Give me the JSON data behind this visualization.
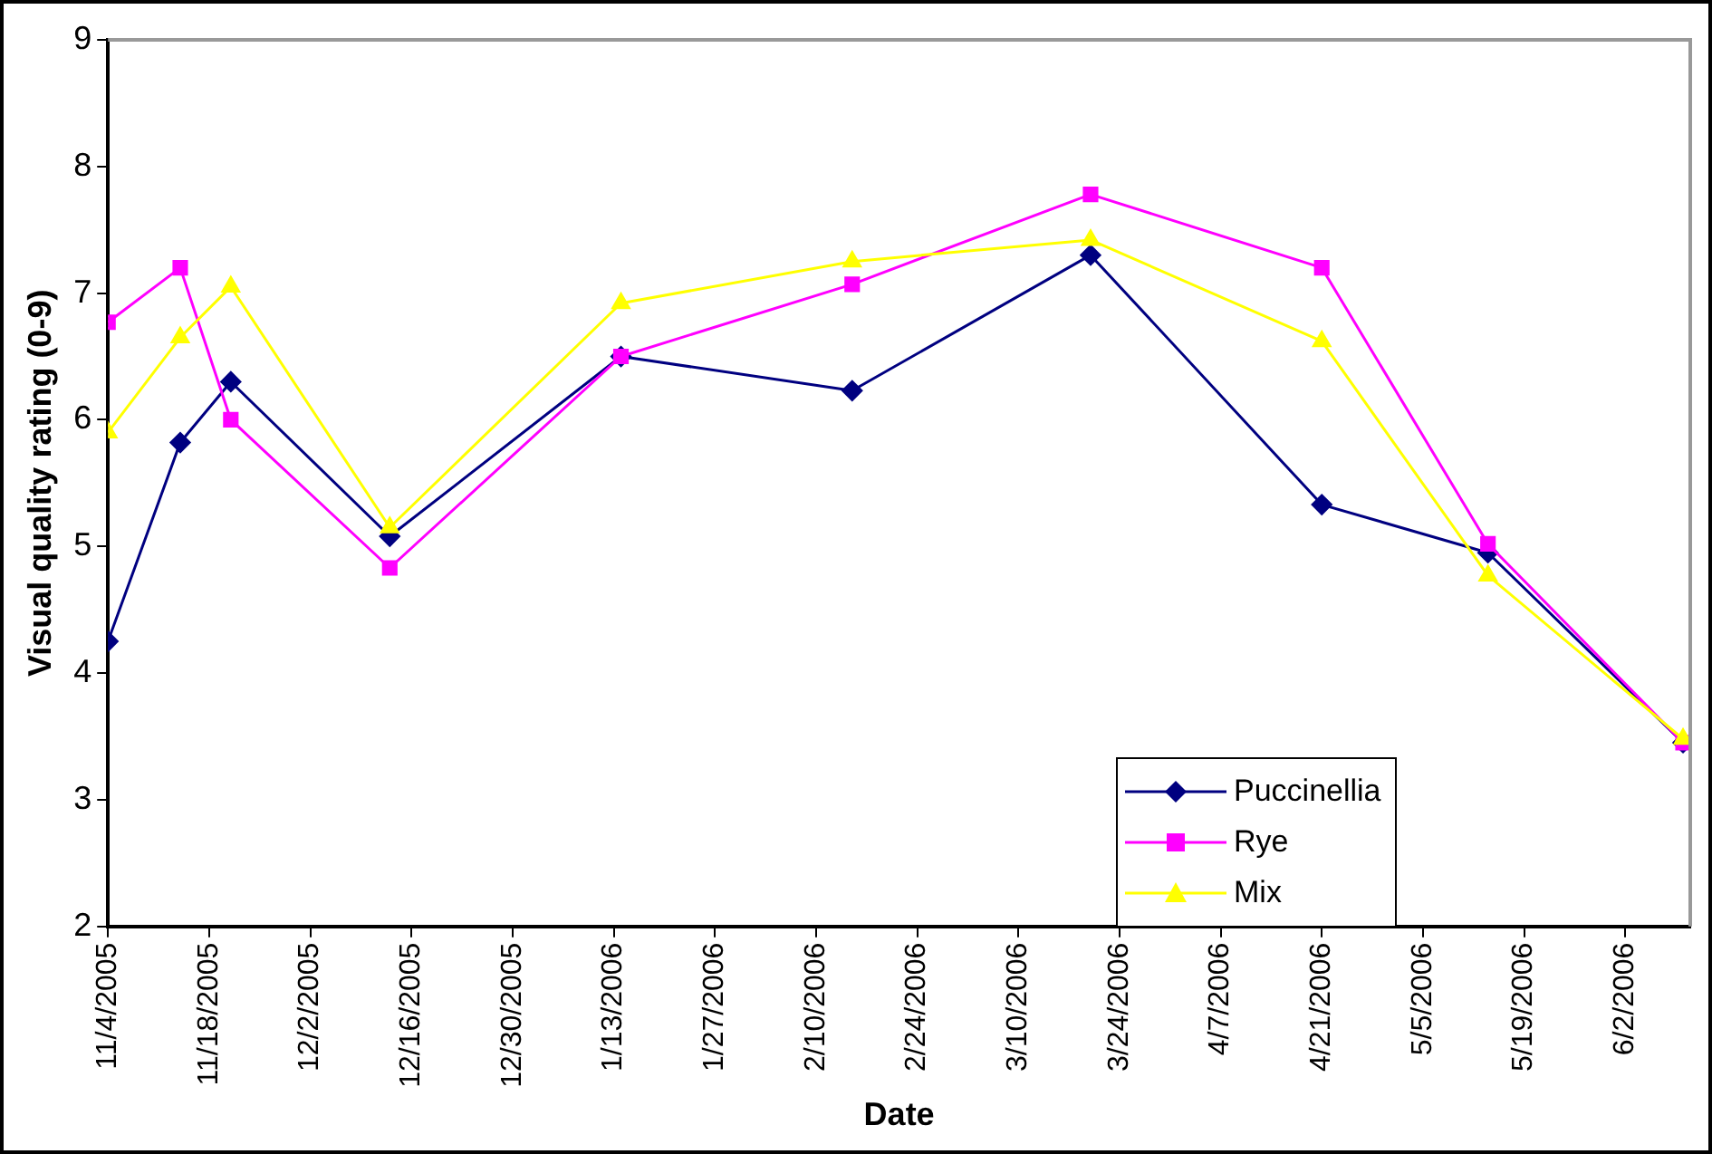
{
  "chart_data": {
    "type": "line",
    "xlabel": "Date",
    "ylabel": "Visual quality rating (0-9)",
    "x": [
      "2005-11-04",
      "2005-11-14",
      "2005-11-21",
      "2005-12-13",
      "2006-01-14",
      "2006-02-15",
      "2006-03-20",
      "2006-04-21",
      "2006-05-14",
      "2006-06-10"
    ],
    "series": [
      {
        "name": "Puccinellia",
        "color": "#000080",
        "marker": "diamond",
        "values": [
          4.25,
          5.82,
          6.3,
          5.08,
          6.5,
          6.23,
          7.3,
          5.33,
          4.95,
          3.45
        ]
      },
      {
        "name": "Rye",
        "color": "#ff00ff",
        "marker": "square",
        "values": [
          6.77,
          7.2,
          6.0,
          4.83,
          6.5,
          7.07,
          7.78,
          7.2,
          5.02,
          3.45
        ]
      },
      {
        "name": "Mix",
        "color": "#ffff00",
        "marker": "triangle",
        "values": [
          5.9,
          6.65,
          7.05,
          5.15,
          6.92,
          7.25,
          7.42,
          6.62,
          4.77,
          3.48
        ]
      }
    ],
    "xlim": [
      "2005-11-04",
      "2006-06-11"
    ],
    "xticks": [
      {
        "value": "2005-11-04",
        "label": "11/4/2005"
      },
      {
        "value": "2005-11-18",
        "label": "11/18/2005"
      },
      {
        "value": "2005-12-02",
        "label": "12/2/2005"
      },
      {
        "value": "2005-12-16",
        "label": "12/16/2005"
      },
      {
        "value": "2005-12-30",
        "label": "12/30/2005"
      },
      {
        "value": "2006-01-13",
        "label": "1/13/2006"
      },
      {
        "value": "2006-01-27",
        "label": "1/27/2006"
      },
      {
        "value": "2006-02-10",
        "label": "2/10/2006"
      },
      {
        "value": "2006-02-24",
        "label": "2/24/2006"
      },
      {
        "value": "2006-03-10",
        "label": "3/10/2006"
      },
      {
        "value": "2006-03-24",
        "label": "3/24/2006"
      },
      {
        "value": "2006-04-07",
        "label": "4/7/2006"
      },
      {
        "value": "2006-04-21",
        "label": "4/21/2006"
      },
      {
        "value": "2006-05-05",
        "label": "5/5/2006"
      },
      {
        "value": "2006-05-19",
        "label": "5/19/2006"
      },
      {
        "value": "2006-06-02",
        "label": "6/2/2006"
      }
    ],
    "ylim": [
      2,
      9
    ],
    "yticks": [
      2,
      3,
      4,
      5,
      6,
      7,
      8,
      9
    ],
    "grid": false,
    "legend": "bottom right",
    "line_style": "solid"
  }
}
